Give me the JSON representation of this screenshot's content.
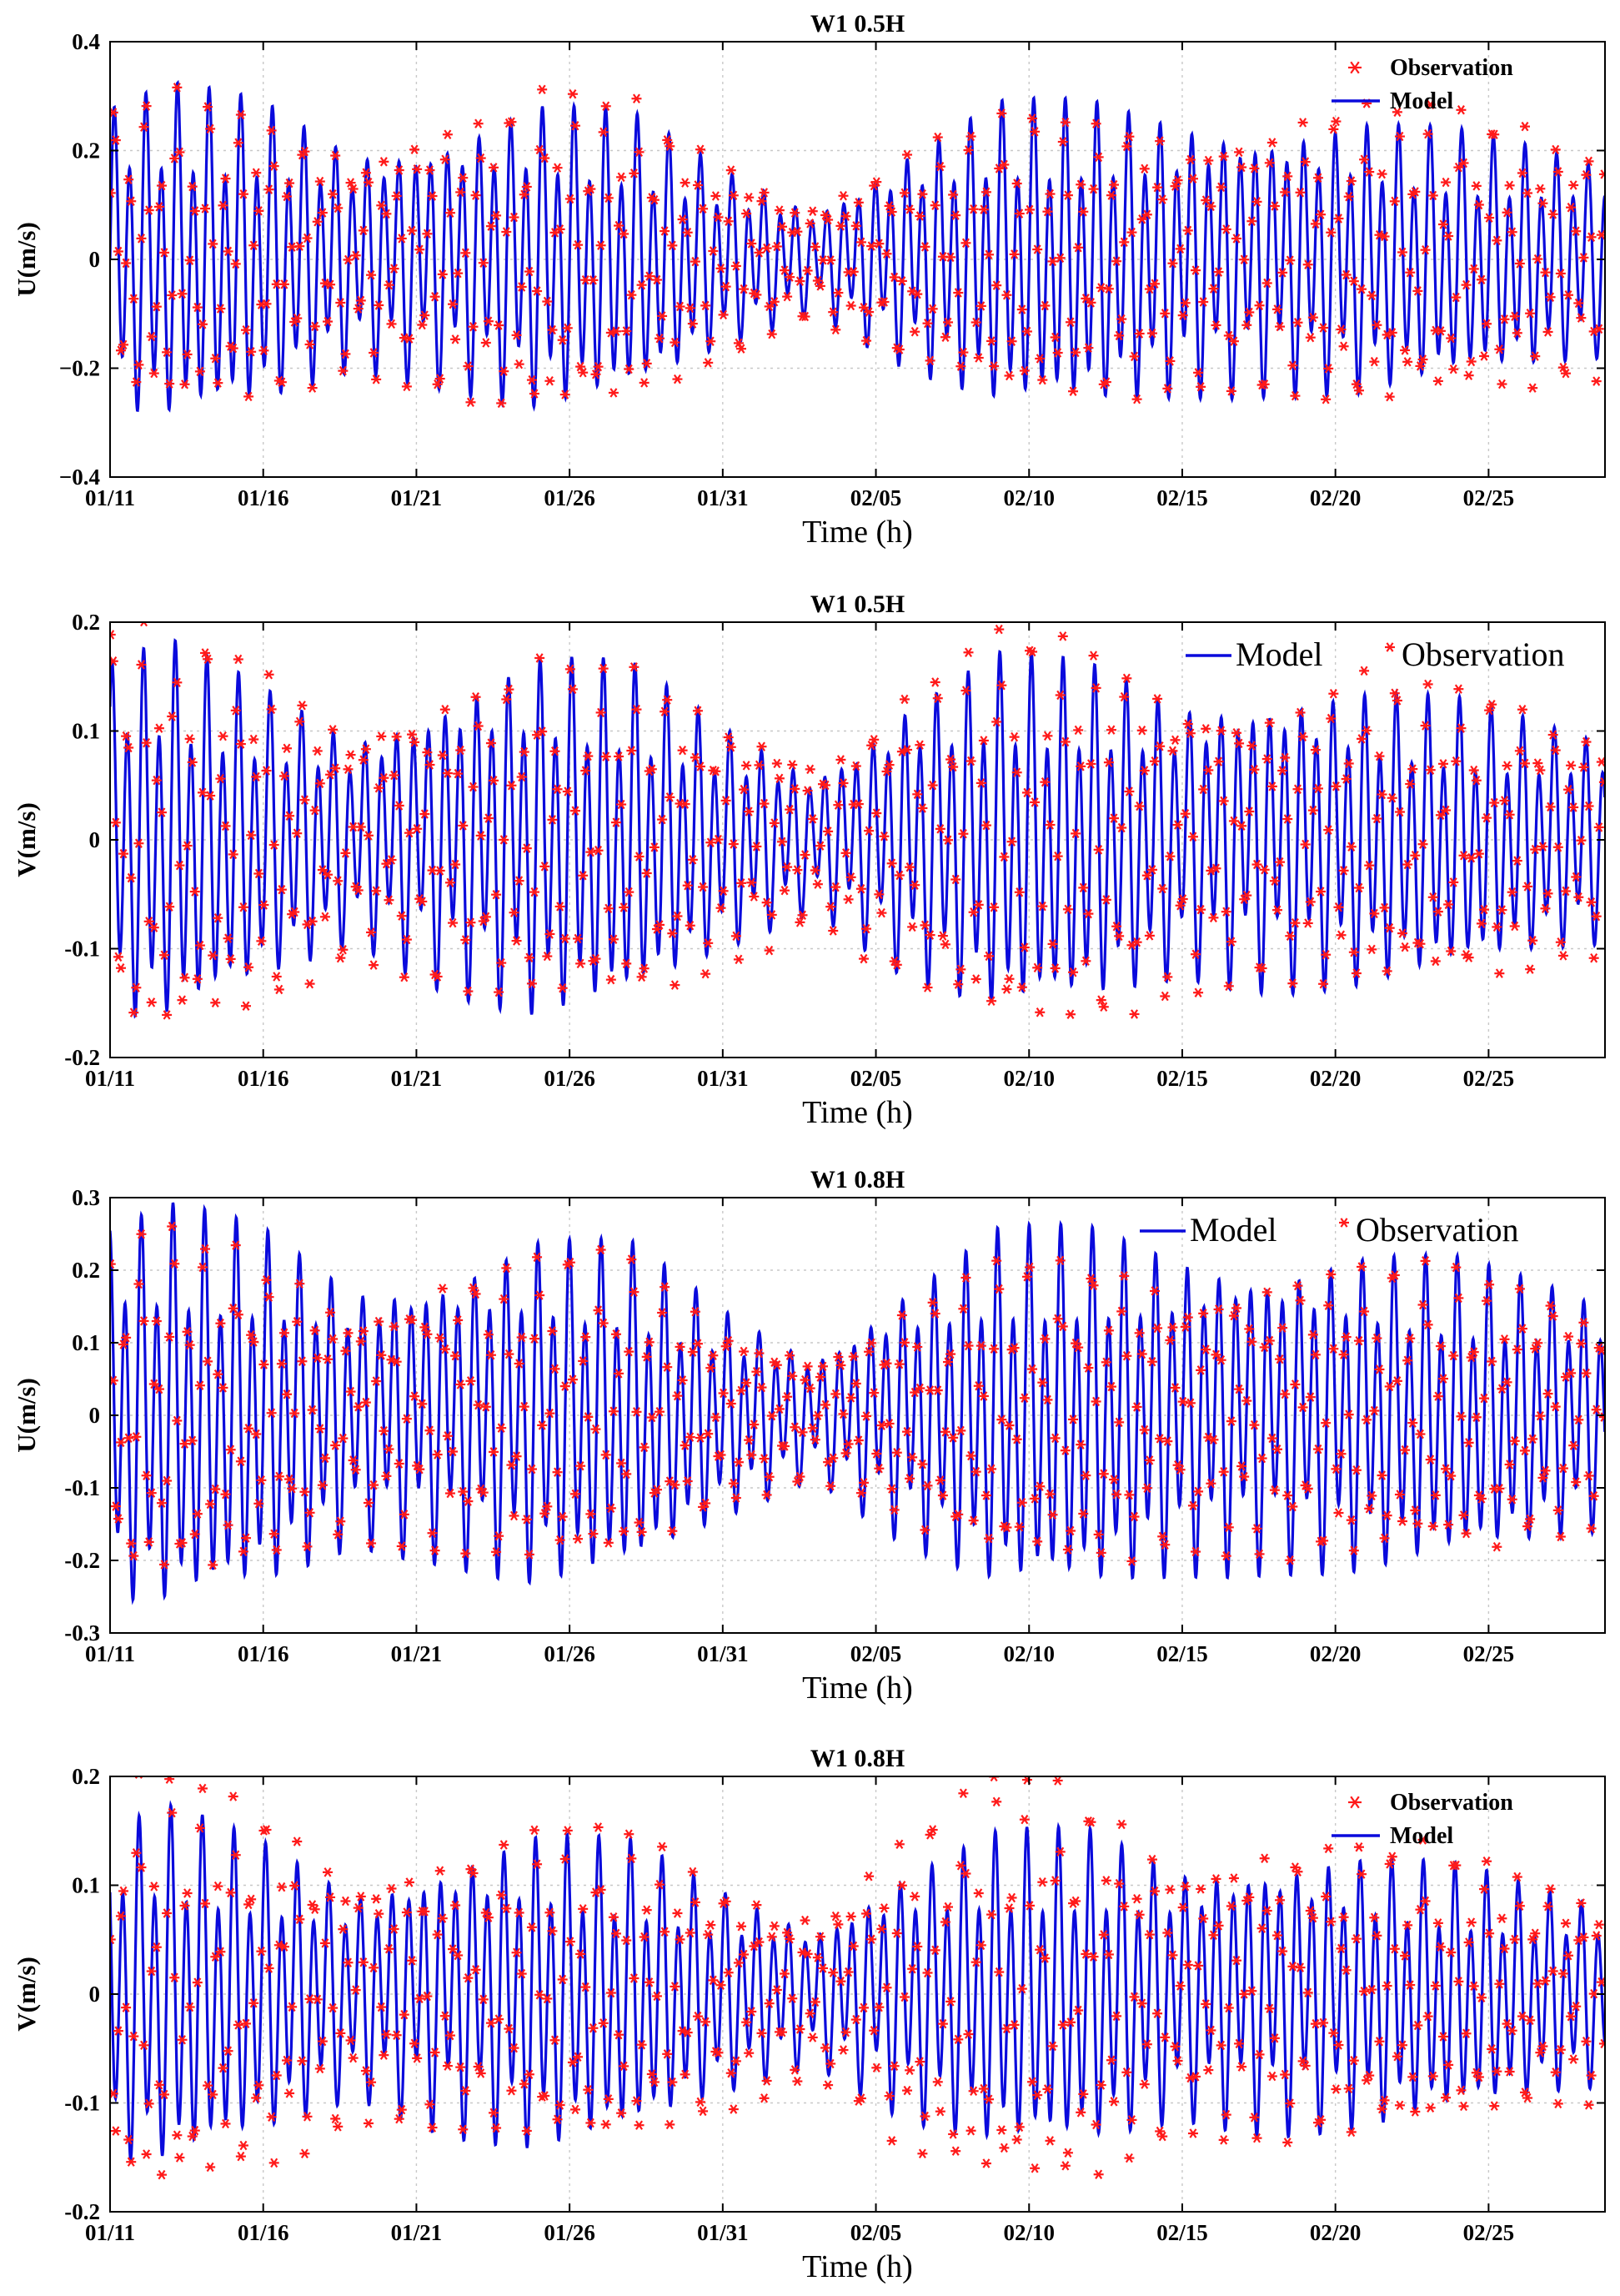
{
  "figure": {
    "line_color": "#0a0adc",
    "marker_color": "#ff1a1a"
  },
  "chart_data": [
    {
      "type": "line",
      "title": "W1 0.5H",
      "xlabel": "Time (h)",
      "ylabel": "U(m/s)",
      "ylim": [
        -0.4,
        0.4
      ],
      "yticks": [
        0.4,
        0.2,
        0,
        -0.2,
        -0.4
      ],
      "ytick_labels": [
        "0.4",
        "0.2",
        "0",
        "−0.2",
        "−0.4"
      ],
      "xlim_days": [
        0,
        48.8
      ],
      "xtick_days": [
        0,
        5,
        10,
        15,
        20,
        25,
        30,
        35,
        40,
        45
      ],
      "categories": [
        "01/11",
        "01/16",
        "01/21",
        "01/26",
        "01/31",
        "02/05",
        "02/10",
        "02/15",
        "02/20",
        "02/25"
      ],
      "grid": true,
      "legend_position": "top-right",
      "legend_style": "bold-stacked",
      "legend": [
        "Observation",
        "Model"
      ],
      "series": [
        {
          "name": "Model",
          "style": "line",
          "envelope_days": [
            0,
            2,
            5,
            8,
            11,
            14,
            17,
            20,
            23,
            26,
            29,
            32,
            35,
            38,
            41,
            44,
            47,
            48.8
          ],
          "envelope_amplitude": [
            0.27,
            0.3,
            0.27,
            0.19,
            0.22,
            0.27,
            0.25,
            0.16,
            0.09,
            0.19,
            0.27,
            0.27,
            0.24,
            0.23,
            0.24,
            0.22,
            0.19,
            0.17
          ]
        },
        {
          "name": "Observation",
          "style": "marker-asterisk",
          "envelope_days": [
            0,
            2,
            5,
            8,
            11,
            14,
            17,
            20,
            23,
            26,
            29,
            32,
            35,
            38,
            41,
            44,
            47,
            48.8
          ],
          "envelope_amplitude": [
            0.26,
            0.28,
            0.25,
            0.19,
            0.24,
            0.29,
            0.27,
            0.17,
            0.1,
            0.18,
            0.25,
            0.25,
            0.22,
            0.24,
            0.27,
            0.26,
            0.22,
            0.19
          ]
        }
      ]
    },
    {
      "type": "line",
      "title": "W1 0.5H",
      "xlabel": "Time (h)",
      "ylabel": "V(m/s)",
      "ylim": [
        -0.2,
        0.2
      ],
      "yticks": [
        0.2,
        0.1,
        0,
        -0.1,
        -0.2
      ],
      "ytick_labels": [
        "0.2",
        "0.1",
        "0",
        "-0.1",
        "-0.2"
      ],
      "xlim_days": [
        0,
        48.8
      ],
      "xtick_days": [
        0,
        5,
        10,
        15,
        20,
        25,
        30,
        35,
        40,
        45
      ],
      "categories": [
        "01/11",
        "01/16",
        "01/21",
        "01/26",
        "01/31",
        "02/05",
        "02/10",
        "02/15",
        "02/20",
        "02/25"
      ],
      "grid": true,
      "legend_position": "top-right",
      "legend_style": "plain-inline",
      "legend": [
        "Model",
        "Observation"
      ],
      "series": [
        {
          "name": "Model",
          "style": "line",
          "envelope_days": [
            0,
            2,
            5,
            8,
            11,
            14,
            17,
            20,
            23,
            26,
            29,
            32,
            35,
            38,
            41,
            44,
            47,
            48.8
          ],
          "envelope_amplitude": [
            0.16,
            0.17,
            0.13,
            0.09,
            0.13,
            0.16,
            0.15,
            0.1,
            0.06,
            0.12,
            0.16,
            0.15,
            0.12,
            0.13,
            0.13,
            0.12,
            0.1,
            0.09
          ]
        },
        {
          "name": "Observation",
          "style": "marker-asterisk",
          "envelope_days": [
            0,
            2,
            5,
            8,
            11,
            14,
            17,
            20,
            23,
            26,
            29,
            32,
            35,
            38,
            41,
            44,
            47,
            48.8
          ],
          "envelope_amplitude": [
            0.18,
            0.19,
            0.15,
            0.1,
            0.13,
            0.15,
            0.15,
            0.11,
            0.07,
            0.13,
            0.18,
            0.17,
            0.13,
            0.12,
            0.14,
            0.13,
            0.11,
            0.1
          ]
        }
      ]
    },
    {
      "type": "line",
      "title": "W1 0.8H",
      "xlabel": "Time (h)",
      "ylabel": "U(m/s)",
      "ylim": [
        -0.3,
        0.3
      ],
      "yticks": [
        0.3,
        0.2,
        0.1,
        0,
        -0.1,
        -0.2,
        -0.3
      ],
      "ytick_labels": [
        "0.3",
        "0.2",
        "0.1",
        "0",
        "-0.1",
        "-0.2",
        "-0.3"
      ],
      "xlim_days": [
        0,
        48.8
      ],
      "xtick_days": [
        0,
        5,
        10,
        15,
        20,
        25,
        30,
        35,
        40,
        45
      ],
      "categories": [
        "01/11",
        "01/16",
        "01/21",
        "01/26",
        "01/31",
        "02/05",
        "02/10",
        "02/15",
        "02/20",
        "02/25"
      ],
      "grid": true,
      "legend_position": "top-right",
      "legend_style": "plain-inline",
      "legend": [
        "Model",
        "Observation"
      ],
      "series": [
        {
          "name": "Model",
          "style": "line",
          "envelope_days": [
            0,
            2,
            5,
            8,
            11,
            14,
            17,
            20,
            23,
            26,
            29,
            32,
            35,
            38,
            41,
            44,
            47,
            48.8
          ],
          "envelope_amplitude": [
            0.25,
            0.27,
            0.24,
            0.17,
            0.19,
            0.23,
            0.22,
            0.14,
            0.08,
            0.17,
            0.24,
            0.24,
            0.21,
            0.2,
            0.21,
            0.2,
            0.17,
            0.15
          ]
        },
        {
          "name": "Observation",
          "style": "marker-asterisk",
          "envelope_days": [
            0,
            2,
            5,
            8,
            11,
            14,
            17,
            20,
            23,
            26,
            29,
            32,
            35,
            38,
            41,
            44,
            47,
            48.8
          ],
          "envelope_amplitude": [
            0.22,
            0.24,
            0.2,
            0.15,
            0.18,
            0.21,
            0.2,
            0.12,
            0.08,
            0.14,
            0.2,
            0.2,
            0.17,
            0.18,
            0.2,
            0.19,
            0.16,
            0.14
          ]
        }
      ]
    },
    {
      "type": "line",
      "title": "W1 0.8H",
      "xlabel": "Time (h)",
      "ylabel": "V(m/s)",
      "ylim": [
        -0.2,
        0.2
      ],
      "yticks": [
        0.2,
        0.1,
        0,
        -0.1,
        -0.2
      ],
      "ytick_labels": [
        "0.2",
        "0.1",
        "0",
        "-0.1",
        "-0.2"
      ],
      "xlim_days": [
        0,
        48.8
      ],
      "xtick_days": [
        0,
        5,
        10,
        15,
        20,
        25,
        30,
        35,
        40,
        45
      ],
      "categories": [
        "01/11",
        "01/16",
        "01/21",
        "01/26",
        "01/31",
        "02/05",
        "02/10",
        "02/15",
        "02/20",
        "02/25"
      ],
      "grid": true,
      "legend_position": "top-right",
      "legend_style": "bold-stacked",
      "legend": [
        "Observation",
        "Model"
      ],
      "series": [
        {
          "name": "Model",
          "style": "line",
          "envelope_days": [
            0,
            2,
            5,
            8,
            11,
            14,
            17,
            20,
            23,
            26,
            29,
            32,
            35,
            38,
            41,
            44,
            47,
            48.8
          ],
          "envelope_amplitude": [
            0.15,
            0.16,
            0.13,
            0.09,
            0.12,
            0.14,
            0.13,
            0.09,
            0.06,
            0.11,
            0.14,
            0.14,
            0.11,
            0.12,
            0.12,
            0.11,
            0.09,
            0.08
          ]
        },
        {
          "name": "Observation",
          "style": "marker-asterisk",
          "envelope_days": [
            0,
            2,
            5,
            8,
            11,
            14,
            17,
            20,
            23,
            26,
            29,
            32,
            35,
            38,
            41,
            44,
            47,
            48.8
          ],
          "envelope_amplitude": [
            0.18,
            0.19,
            0.16,
            0.11,
            0.12,
            0.14,
            0.14,
            0.1,
            0.07,
            0.14,
            0.19,
            0.17,
            0.12,
            0.13,
            0.13,
            0.12,
            0.1,
            0.09
          ]
        }
      ]
    }
  ]
}
